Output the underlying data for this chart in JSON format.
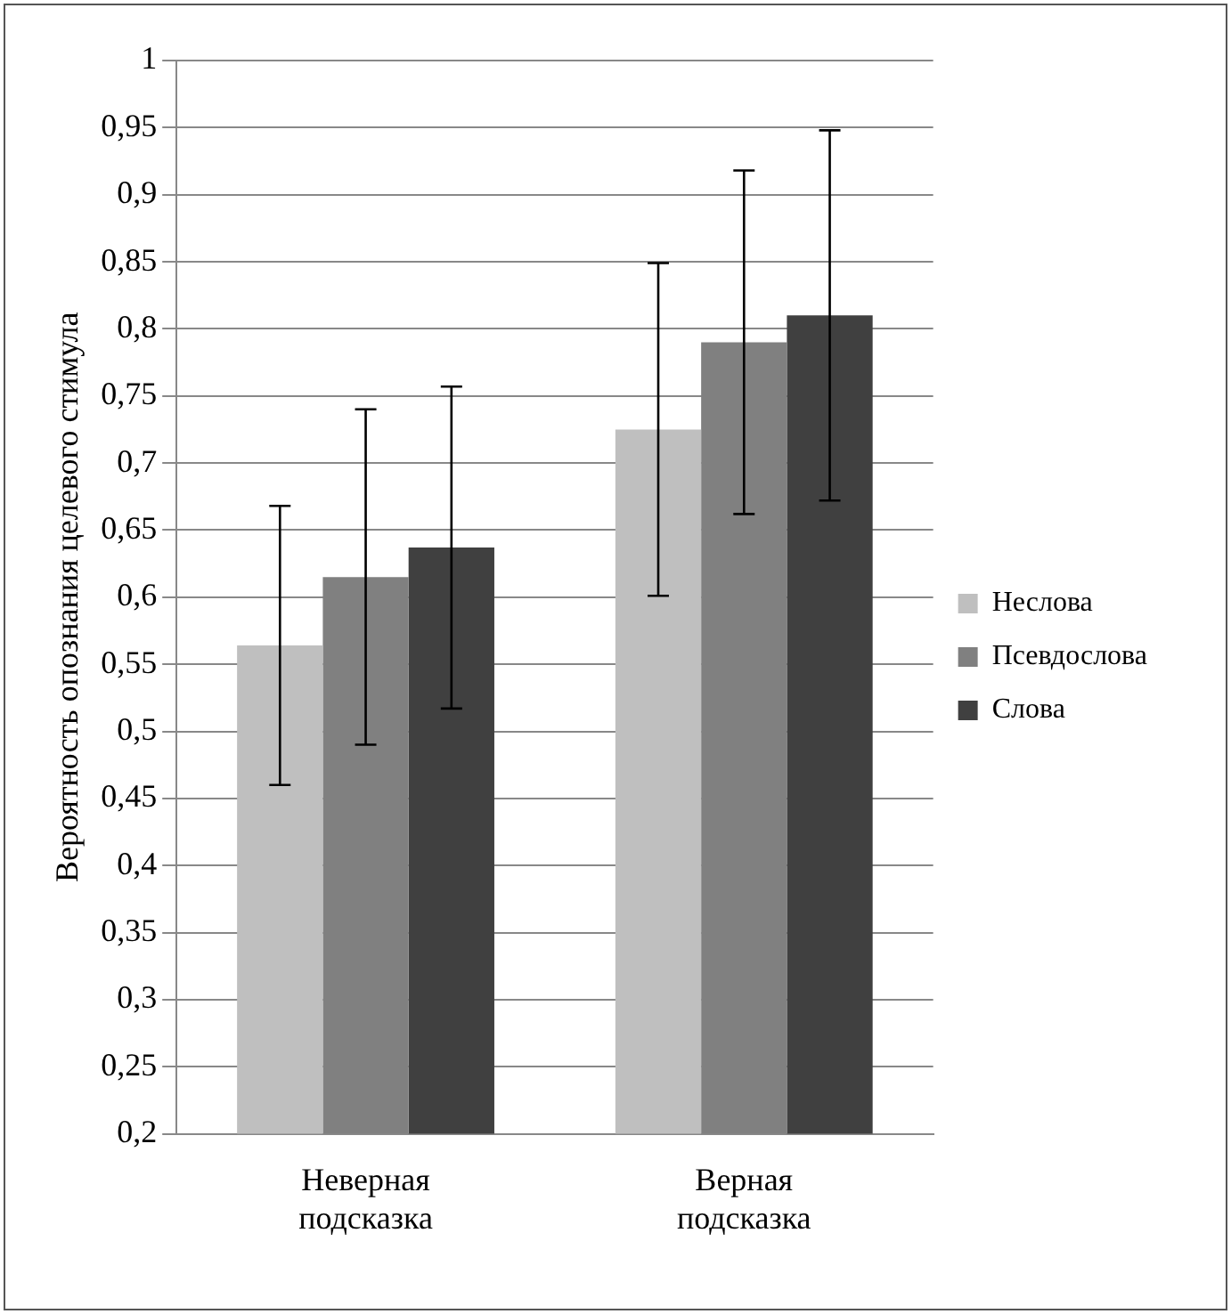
{
  "chart_data": {
    "type": "bar",
    "ylabel": "Вероятность опознания целевого стимула",
    "categories": [
      "Неверная подсказка",
      "Верная подсказка"
    ],
    "series": [
      {
        "name": "Неслова",
        "color": "#bfbfbf",
        "values": [
          0.564,
          0.725
        ],
        "errors": [
          0.104,
          0.124
        ]
      },
      {
        "name": "Псевдослова",
        "color": "#808080",
        "values": [
          0.615,
          0.79
        ],
        "errors": [
          0.125,
          0.128
        ]
      },
      {
        "name": "Слова",
        "color": "#404040",
        "values": [
          0.637,
          0.81
        ],
        "errors": [
          0.12,
          0.138
        ]
      }
    ],
    "ylim": [
      0.2,
      1
    ],
    "yticks": [
      {
        "value": 0.2,
        "label": "0,2"
      },
      {
        "value": 0.25,
        "label": "0,25"
      },
      {
        "value": 0.3,
        "label": "0,3"
      },
      {
        "value": 0.35,
        "label": "0,35"
      },
      {
        "value": 0.4,
        "label": "0,4"
      },
      {
        "value": 0.45,
        "label": "0,45"
      },
      {
        "value": 0.5,
        "label": "0,5"
      },
      {
        "value": 0.55,
        "label": "0,55"
      },
      {
        "value": 0.6,
        "label": "0,6"
      },
      {
        "value": 0.65,
        "label": "0,65"
      },
      {
        "value": 0.7,
        "label": "0,7"
      },
      {
        "value": 0.75,
        "label": "0,75"
      },
      {
        "value": 0.8,
        "label": "0,8"
      },
      {
        "value": 0.85,
        "label": "0,85"
      },
      {
        "value": 0.9,
        "label": "0,9"
      },
      {
        "value": 0.95,
        "label": "0,95"
      },
      1
    ],
    "grid": "y",
    "legend": "right"
  }
}
